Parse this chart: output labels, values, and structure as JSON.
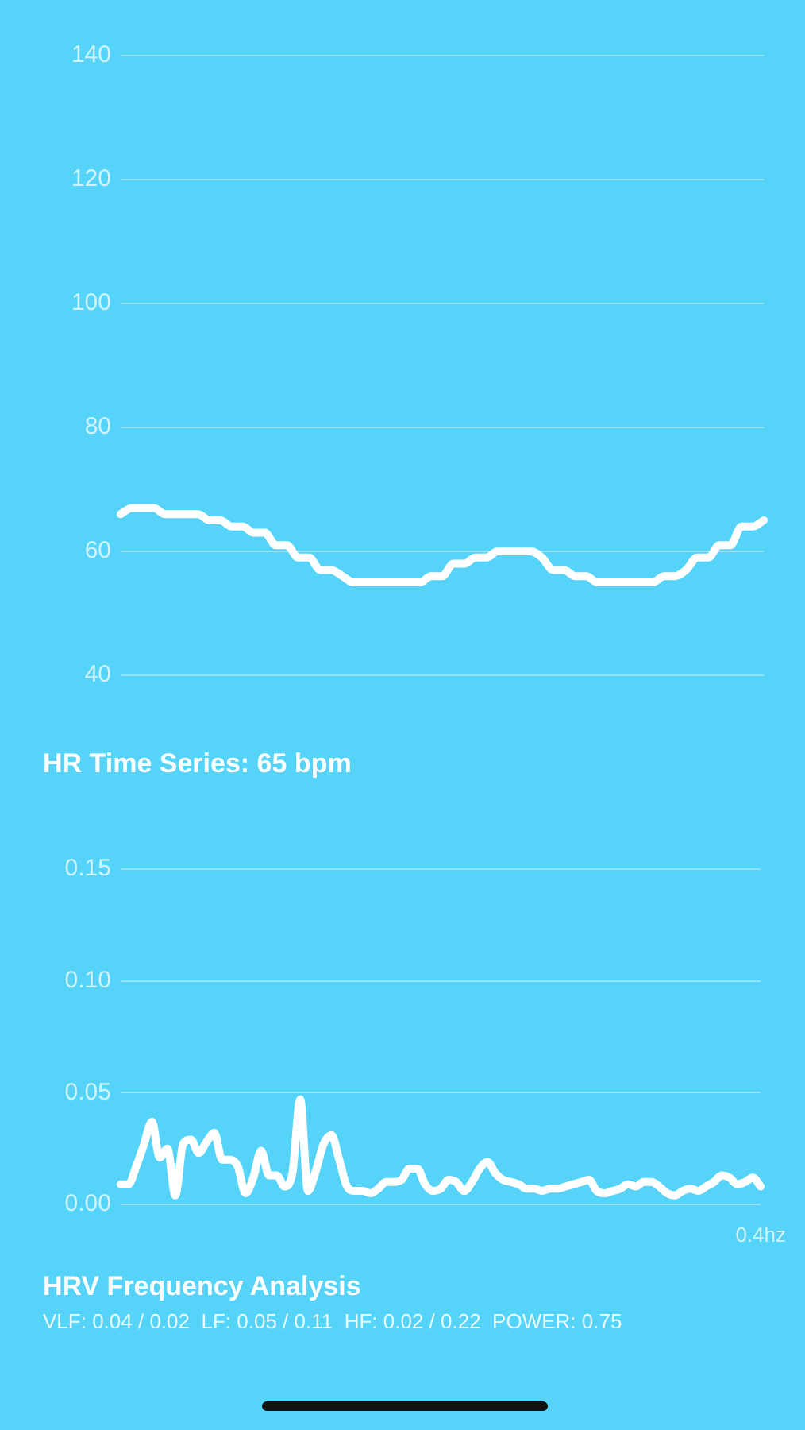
{
  "chart_data": [
    {
      "type": "line",
      "title": "HR Time Series: 65 bpm",
      "categories": [
        null,
        null,
        null,
        null,
        null,
        null,
        null,
        null,
        null,
        null,
        null,
        null,
        null,
        null,
        null,
        null,
        null,
        null,
        null,
        null,
        null,
        null,
        null,
        null,
        null,
        null,
        null,
        null,
        null,
        null,
        null,
        null,
        null,
        null,
        null,
        null,
        null,
        null,
        null,
        null,
        null,
        null,
        null,
        null,
        null,
        null,
        null,
        null,
        null,
        null,
        null,
        null,
        null,
        null,
        null,
        null,
        null,
        null,
        null
      ],
      "series": [
        {
          "color": "#ffffff",
          "values": [
            66,
            67,
            67,
            67,
            66,
            66,
            66,
            66,
            65,
            65,
            64,
            64,
            63,
            63,
            61,
            61,
            59,
            59,
            57,
            57,
            56,
            55,
            55,
            55,
            55,
            55,
            55,
            55,
            56,
            56,
            58,
            58,
            59,
            59,
            60,
            60,
            60,
            60,
            59,
            57,
            57,
            56,
            56,
            55,
            55,
            55,
            55,
            55,
            55,
            56,
            56,
            57,
            59,
            59,
            61,
            61,
            64,
            64,
            65
          ]
        }
      ],
      "ylim": [
        40,
        140
      ],
      "yticks": [
        40,
        60,
        80,
        100,
        120,
        140
      ],
      "grid": "y",
      "tick_labels": "y"
    },
    {
      "type": "line",
      "title": "HRV Frequency Analysis",
      "subtitle": "VLF: 0.04 / 0.02  LF: 0.05 / 0.11  HF: 0.02 / 0.22  POWER: 0.75",
      "categories": [
        null,
        null,
        null,
        null,
        null,
        null,
        null,
        null,
        null,
        null,
        null,
        null,
        null,
        null,
        null,
        null,
        null,
        null,
        null,
        null,
        null,
        null,
        null,
        null,
        null,
        null,
        null,
        null,
        null,
        null,
        null,
        null,
        null,
        null,
        null,
        null,
        null,
        null,
        null,
        null,
        null,
        null,
        null,
        null,
        null,
        null,
        null,
        null,
        null,
        null,
        null,
        null,
        null,
        null,
        null,
        null,
        null,
        null,
        null,
        null,
        null,
        null,
        null,
        null,
        null,
        null,
        null,
        null,
        null,
        null,
        null,
        null,
        null,
        null,
        null,
        null,
        null,
        null,
        null,
        null,
        null,
        null,
        "0.4hz"
      ],
      "series": [
        {
          "color": "#ffffff",
          "values": [
            0.009,
            0.009,
            0.017,
            0.027,
            0.037,
            0.021,
            0.025,
            0.004,
            0.027,
            0.029,
            0.023,
            0.028,
            0.032,
            0.02,
            0.02,
            0.017,
            0.005,
            0.012,
            0.024,
            0.013,
            0.013,
            0.008,
            0.014,
            0.047,
            0.006,
            0.015,
            0.027,
            0.031,
            0.02,
            0.008,
            0.006,
            0.006,
            0.005,
            0.007,
            0.01,
            0.01,
            0.011,
            0.016,
            0.016,
            0.009,
            0.006,
            0.007,
            0.011,
            0.01,
            0.006,
            0.01,
            0.016,
            0.019,
            0.014,
            0.011,
            0.01,
            0.009,
            0.007,
            0.007,
            0.006,
            0.007,
            0.007,
            0.008,
            0.009,
            0.01,
            0.011,
            0.006,
            0.005,
            0.006,
            0.007,
            0.009,
            0.008,
            0.01,
            0.01,
            0.008,
            0.005,
            0.004,
            0.006,
            0.007,
            0.006,
            0.008,
            0.01,
            0.013,
            0.012,
            0.009,
            0.01,
            0.012,
            0.008
          ]
        }
      ],
      "ylim": [
        0,
        0.15
      ],
      "yticks": [
        {
          "value": 0,
          "label": "0.00"
        },
        0.05,
        {
          "value": 0.1,
          "label": "0.10"
        },
        0.15
      ],
      "grid": "y"
    }
  ]
}
